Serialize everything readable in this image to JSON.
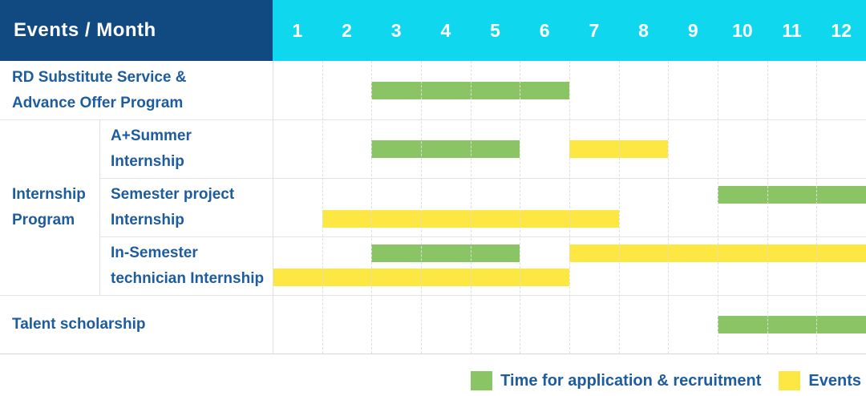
{
  "title": "Events / Month",
  "months": [
    "1",
    "2",
    "3",
    "4",
    "5",
    "6",
    "7",
    "8",
    "9",
    "10",
    "11",
    "12"
  ],
  "colors": {
    "header_navy": "#114a80",
    "header_cyan": "#0fd8ee",
    "application_green": "#8bc464",
    "event_yellow": "#fce743",
    "label_blue": "#1d5c9e",
    "grid_line": "#e4e4e4"
  },
  "chart_data": {
    "type": "gantt",
    "x_unit": "month",
    "x_range": [
      1,
      12
    ],
    "columns_header": "Events / Month",
    "rows": [
      {
        "group": null,
        "label": "RD Substitute Service & Advance Offer Program",
        "label_lines": [
          "RD Substitute Service &",
          "Advance Offer Program"
        ],
        "lines": [
          [
            {
              "type": "application",
              "start_month": 3,
              "end_month": 6
            }
          ]
        ]
      },
      {
        "group": "Internship Program",
        "label": "A+Summer Internship",
        "label_lines": [
          "A+Summer",
          "Internship"
        ],
        "lines": [
          [
            {
              "type": "application",
              "start_month": 3,
              "end_month": 5
            },
            {
              "type": "event",
              "start_month": 7,
              "end_month": 8
            }
          ]
        ]
      },
      {
        "group": "Internship Program",
        "label": "Semester project Internship",
        "label_lines": [
          "Semester project",
          "Internship"
        ],
        "lines": [
          [
            {
              "type": "application",
              "start_month": 10,
              "end_month": 12
            }
          ],
          [
            {
              "type": "event",
              "start_month": 2,
              "end_month": 7
            }
          ]
        ]
      },
      {
        "group": "Internship Program",
        "label": "In-Semester technician Internship",
        "label_lines": [
          "In-Semester",
          "technician Internship"
        ],
        "lines": [
          [
            {
              "type": "application",
              "start_month": 3,
              "end_month": 5
            },
            {
              "type": "event",
              "start_month": 7,
              "end_month": 12
            }
          ],
          [
            {
              "type": "event",
              "start_month": 1,
              "end_month": 6
            }
          ]
        ]
      },
      {
        "group": null,
        "label": "Talent scholarship",
        "label_lines": [
          "Talent scholarship"
        ],
        "lines": [
          [
            {
              "type": "application",
              "start_month": 10,
              "end_month": 12
            }
          ]
        ]
      }
    ],
    "group_label_lines": [
      "Internship",
      "Program"
    ]
  },
  "legend": [
    {
      "type": "application",
      "label": "Time for application & recruitment"
    },
    {
      "type": "event",
      "label": "Events"
    }
  ]
}
